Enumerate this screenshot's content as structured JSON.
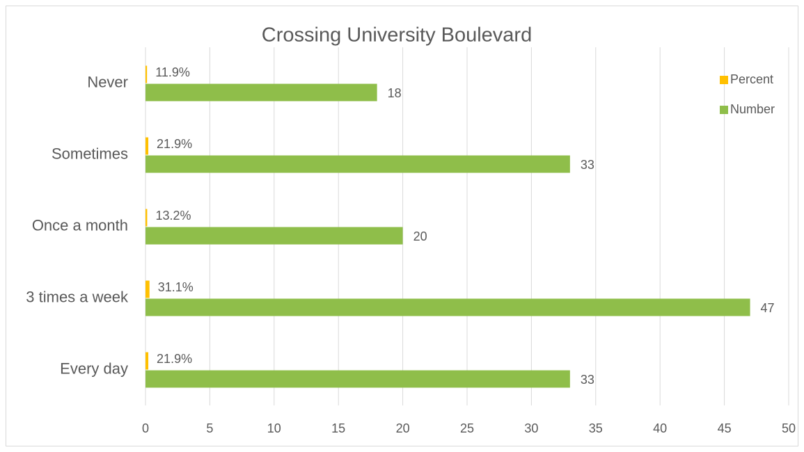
{
  "chart_data": {
    "type": "hbar",
    "title": "Crossing University Boulevard",
    "categories": [
      "Never",
      "Sometimes",
      "Once a month",
      "3 times a week",
      "Every day"
    ],
    "series": [
      {
        "name": "Percent",
        "color": "#ffc000",
        "values": [
          0.119,
          0.219,
          0.132,
          0.311,
          0.219
        ],
        "value_labels": [
          "11.9%",
          "21.9%",
          "13.2%",
          "31.1%",
          "21.9%"
        ]
      },
      {
        "name": "Number",
        "color": "#8fbe4a",
        "values": [
          18,
          33,
          20,
          47,
          33
        ]
      }
    ],
    "xlim": [
      0,
      50
    ],
    "xticks": [
      0,
      5,
      10,
      15,
      20,
      25,
      30,
      35,
      40,
      45,
      50
    ],
    "grid": true,
    "legend": "right"
  }
}
